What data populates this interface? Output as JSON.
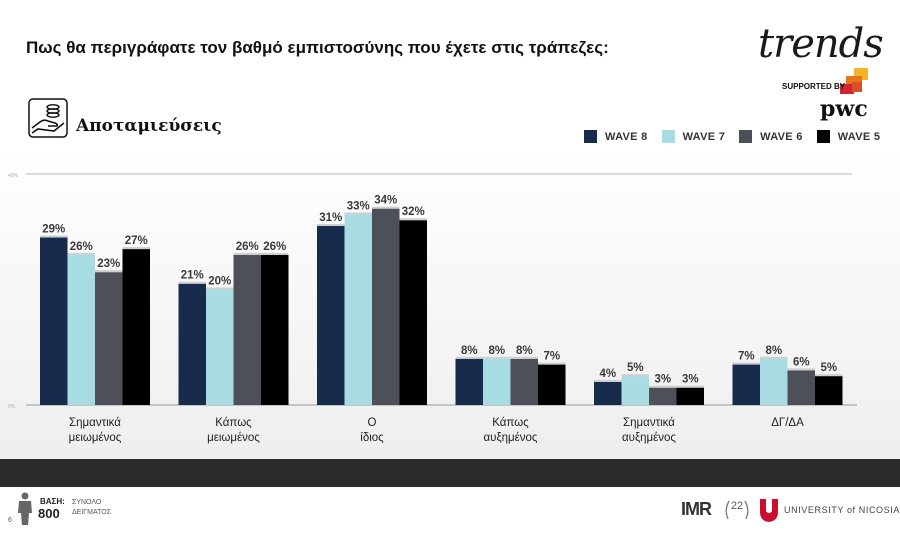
{
  "header": {
    "question": "Πως θα περιγράφατε τον βαθμό εμπιστοσύνης που έχετε στις τράπεζες:",
    "section_title": "Αποταμιεύσεις",
    "section_icon": "savings-hand-coins-icon"
  },
  "brand": {
    "trends": "trends",
    "supported_by": "SUPPORTED BY",
    "sponsor": "pwc"
  },
  "footer": {
    "base_label": "ΒΑΣΗ:",
    "base_value": "800",
    "sample_label": "ΣΥΝΟΛΟ ΔΕΙΓΜΑΤΟΣ",
    "page_number": "6",
    "imr": "IMR",
    "anniversary": "22",
    "university": "UNIVERSITY of NICOSIA"
  },
  "colors": {
    "wave8": "#172b4d",
    "wave7": "#a8dce3",
    "wave6": "#4d5059",
    "wave5": "#000000",
    "pwc_orange": "#e8731a",
    "pwc_red": "#d0262d",
    "unic_red": "#c8102e"
  },
  "chart_data": {
    "type": "bar",
    "title": "",
    "xlabel": "",
    "ylabel": "",
    "ylim": [
      0,
      40
    ],
    "y_tick_labels": [
      "40%",
      "0%"
    ],
    "grid": false,
    "legend_position": "top-right",
    "categories": [
      "Σημαντικά μειωμένος",
      "Κάπως μειωμένος",
      "Ο ίδιος",
      "Κάπως αυξημένος",
      "Σημαντικά αυξημένος",
      "ΔΓ/ΔΑ"
    ],
    "series": [
      {
        "name": "WAVE 8",
        "values": [
          29,
          21,
          31,
          8,
          4,
          7
        ]
      },
      {
        "name": "WAVE 7",
        "values": [
          26,
          20,
          33,
          8,
          5,
          8
        ]
      },
      {
        "name": "WAVE 6",
        "values": [
          23,
          26,
          34,
          8,
          3,
          6
        ]
      },
      {
        "name": "WAVE 5",
        "values": [
          27,
          26,
          32,
          7,
          3,
          5
        ]
      }
    ],
    "value_suffix": "%"
  }
}
